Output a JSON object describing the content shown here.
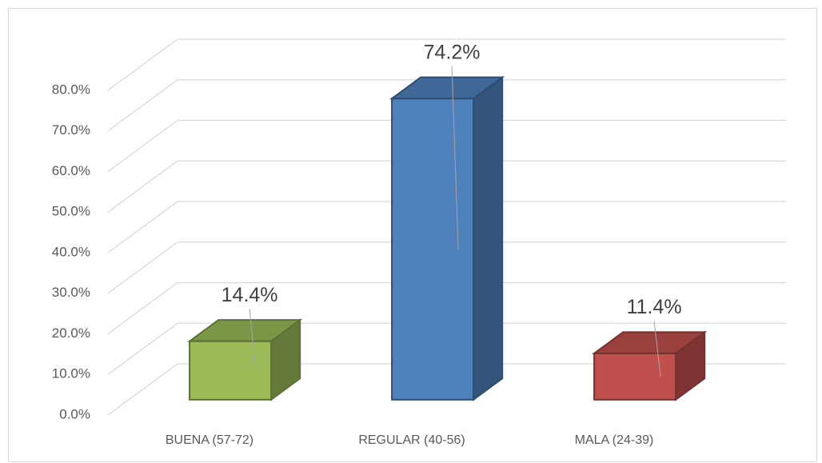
{
  "chart_data": {
    "type": "bar3d",
    "categories": [
      "BUENA (57-72)",
      "REGULAR (40-56)",
      "MALA (24-39)"
    ],
    "values": [
      14.4,
      74.2,
      11.4
    ],
    "value_labels": [
      "14.4%",
      "74.2%",
      "11.4%"
    ],
    "colors": [
      "#9bbb59",
      "#4f81bd",
      "#c0504d"
    ],
    "ylim": [
      0,
      80
    ],
    "yticks": [
      {
        "value": 0,
        "label": "0.0%"
      },
      {
        "value": 10,
        "label": "10.0%"
      },
      {
        "value": 20,
        "label": "20.0%"
      },
      {
        "value": 30,
        "label": "30.0%"
      },
      {
        "value": 40,
        "label": "40.0%"
      },
      {
        "value": 50,
        "label": "50.0%"
      },
      {
        "value": 60,
        "label": "60.0%"
      },
      {
        "value": 70,
        "label": "70.0%"
      },
      {
        "value": 80,
        "label": "80.0%"
      }
    ],
    "grid": true
  }
}
